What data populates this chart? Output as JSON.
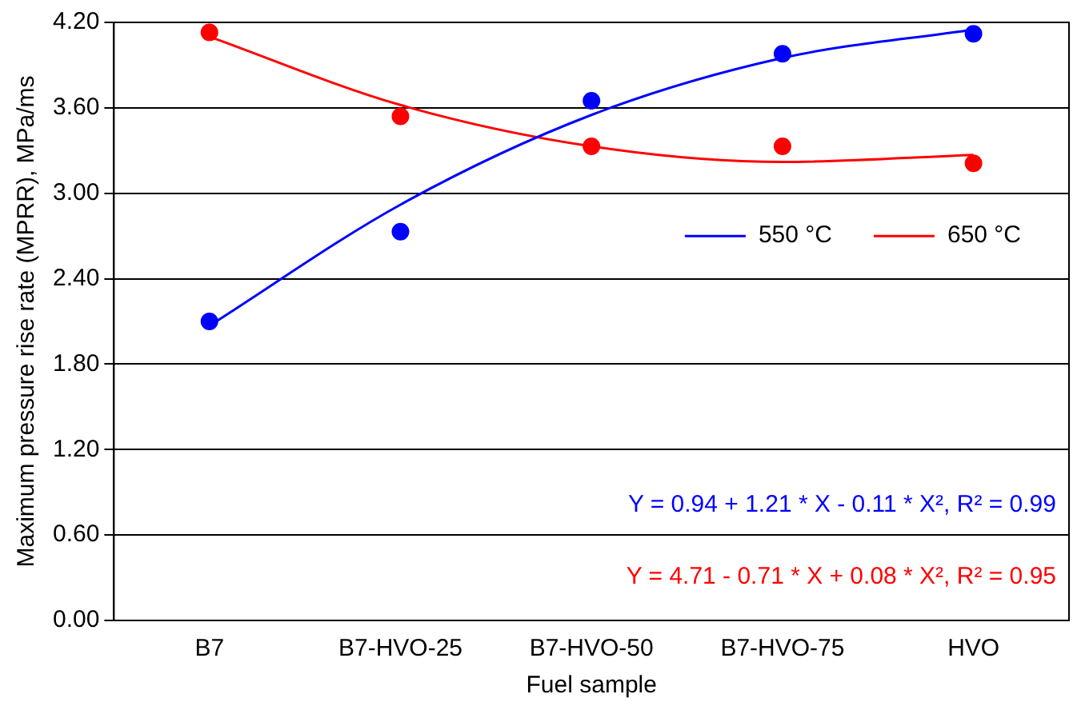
{
  "chart_data": {
    "type": "line",
    "xlabel": "Fuel sample",
    "ylabel": "Maximum pressure rise rate (MPRR), MPa/ms",
    "categories": [
      "B7",
      "B7-HVO-25",
      "B7-HVO-50",
      "B7-HVO-75",
      "HVO"
    ],
    "series": [
      {
        "type": "scatter",
        "marker": "circle",
        "color": "#0000ff",
        "x": [
          "B7",
          "B7-HVO-25",
          "B7-HVO-50",
          "B7-HVO-75",
          "HVO"
        ],
        "values": [
          2.1,
          2.73,
          3.65,
          3.98,
          4.12
        ]
      },
      {
        "type": "scatter",
        "marker": "circle",
        "color": "#ff0000",
        "x": [
          "B7",
          "B7-HVO-25",
          "B7-HVO-50",
          "B7-HVO-75",
          "HVO"
        ],
        "values": [
          4.13,
          3.54,
          3.33,
          3.33,
          3.21
        ]
      },
      {
        "name": "550 °C",
        "color": "#0000ff",
        "values": [
          2.07,
          2.92,
          3.55,
          3.95,
          4.15
        ]
      },
      {
        "name": "650 °C",
        "color": "#ff0000",
        "values": [
          4.1,
          3.62,
          3.33,
          3.22,
          3.27
        ]
      }
    ],
    "ylim": [
      0,
      4.2
    ],
    "yticks": [
      {
        "value": 0,
        "label": "0.00"
      },
      {
        "value": 0.6,
        "label": "0.60"
      },
      {
        "value": 1.2,
        "label": "1.20"
      },
      {
        "value": 1.8,
        "label": "1.80"
      },
      {
        "value": 2.4,
        "label": "2.40"
      },
      {
        "value": 3.0,
        "label": "3.00"
      },
      {
        "value": 3.6,
        "label": "3.60"
      },
      {
        "value": 4.2,
        "label": "4.20"
      }
    ],
    "grid": "y",
    "legend": "right",
    "line_style": "solid",
    "annotations": [
      "Y = 0.94 + 1.21 * X - 0.11 * X², R² = 0.99",
      "Y = 4.71 - 0.71 * X + 0.08 * X², R² = 0.95"
    ]
  }
}
